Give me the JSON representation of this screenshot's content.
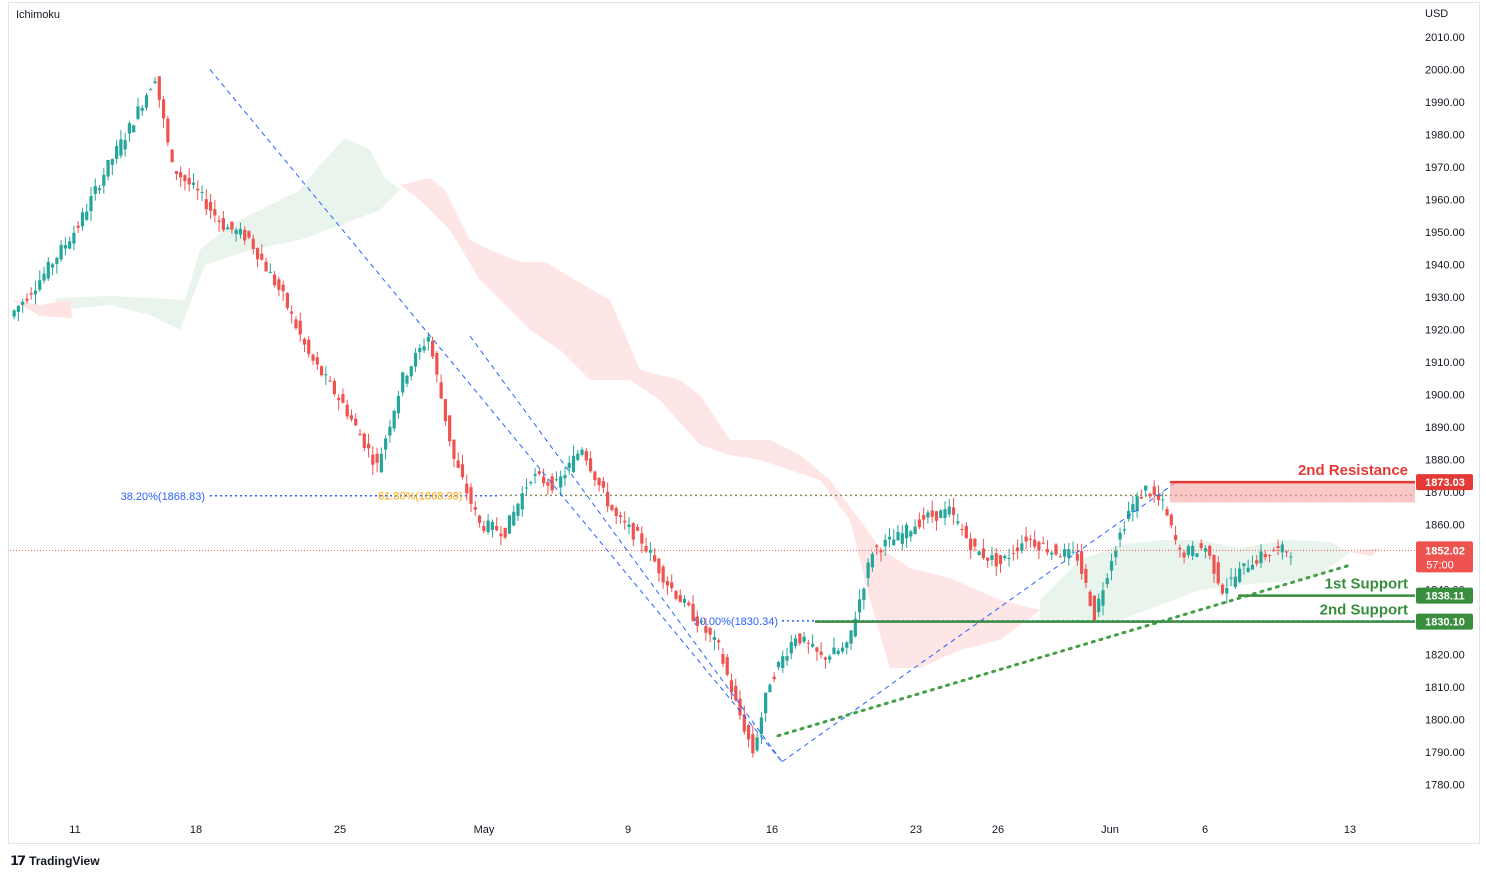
{
  "indicator": "Ichimoku",
  "currency": "USD",
  "branding": "TradingView",
  "colors": {
    "up": "#26a69a",
    "down": "#ef5350",
    "cloud_bull": "#e7f3ea",
    "cloud_bear": "#fde3e2",
    "fib_line": "#2962ff",
    "fib_gold": "#f6a600",
    "support": "#388e3c",
    "resistance": "#e53935",
    "trend_dotted": "#43a047"
  },
  "chart_data": {
    "type": "candlestick",
    "y_axis": {
      "min": 1775,
      "max": 2015,
      "ticks": [
        "1780.00",
        "1790.00",
        "1800.00",
        "1810.00",
        "1820.00",
        "1830.00",
        "1840.00",
        "1850.00",
        "1860.00",
        "1870.00",
        "1880.00",
        "1890.00",
        "1900.00",
        "1910.00",
        "1920.00",
        "1930.00",
        "1940.00",
        "1950.00",
        "1960.00",
        "1970.00",
        "1980.00",
        "1990.00",
        "2000.00",
        "2010.00"
      ]
    },
    "x_axis": {
      "ticks": [
        "11",
        "18",
        "25",
        "May",
        "9",
        "16",
        "23",
        "26",
        "Jun",
        "6",
        "13"
      ]
    },
    "price_path": [
      [
        0,
        1924
      ],
      [
        8,
        1937
      ],
      [
        16,
        1952
      ],
      [
        22,
        1968
      ],
      [
        28,
        1982
      ],
      [
        34,
        1998
      ],
      [
        38,
        1970
      ],
      [
        44,
        1962
      ],
      [
        50,
        1952
      ],
      [
        56,
        1948
      ],
      [
        64,
        1930
      ],
      [
        70,
        1912
      ],
      [
        78,
        1897
      ],
      [
        86,
        1878
      ],
      [
        92,
        1905
      ],
      [
        98,
        1918
      ],
      [
        104,
        1880
      ],
      [
        110,
        1860
      ],
      [
        116,
        1858
      ],
      [
        122,
        1875
      ],
      [
        128,
        1872
      ],
      [
        134,
        1884
      ],
      [
        138,
        1872
      ],
      [
        142,
        1862
      ],
      [
        148,
        1855
      ],
      [
        154,
        1842
      ],
      [
        160,
        1832
      ],
      [
        166,
        1822
      ],
      [
        170,
        1805
      ],
      [
        174,
        1790
      ],
      [
        178,
        1812
      ],
      [
        184,
        1826
      ],
      [
        190,
        1819
      ],
      [
        196,
        1822
      ],
      [
        202,
        1852
      ],
      [
        208,
        1856
      ],
      [
        214,
        1862
      ],
      [
        220,
        1864
      ],
      [
        226,
        1852
      ],
      [
        232,
        1848
      ],
      [
        238,
        1856
      ],
      [
        244,
        1852
      ],
      [
        250,
        1850
      ],
      [
        254,
        1832
      ],
      [
        258,
        1850
      ],
      [
        262,
        1864
      ],
      [
        266,
        1871
      ],
      [
        270,
        1866
      ],
      [
        274,
        1851
      ],
      [
        280,
        1853
      ],
      [
        284,
        1840
      ],
      [
        290,
        1848
      ],
      [
        296,
        1852
      ],
      [
        300,
        1852
      ]
    ],
    "fib_levels": [
      {
        "label": "38.20%(1868.83)",
        "value": 1868.83
      },
      {
        "label": "61.80%(1868.98)",
        "value": 1868.98
      },
      {
        "label": "50.00%(1830.34)",
        "value": 1830.34
      }
    ],
    "levels": [
      {
        "name": "2nd Resistance",
        "value": 1873.03,
        "price_label": "1873.03"
      },
      {
        "name": "1st Support",
        "value": 1838.11,
        "price_label": "1838.11"
      },
      {
        "name": "2nd Support",
        "value": 1830.1,
        "price_label": "1830.10"
      }
    ],
    "last_price": {
      "value": 1852.02,
      "label": "1852.02",
      "countdown": "57:00"
    }
  }
}
